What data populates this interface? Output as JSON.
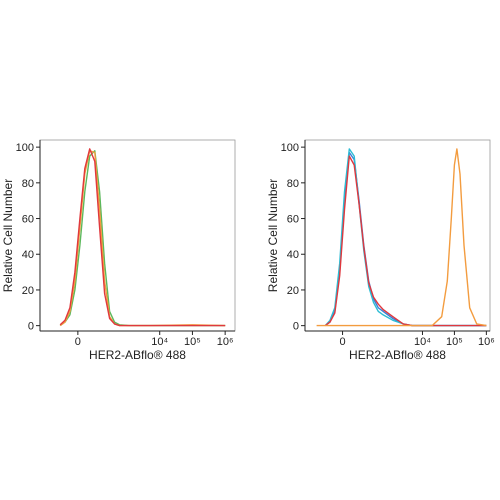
{
  "chart_data": [
    {
      "type": "line",
      "xlabel": "HER2-ABflo® 488",
      "ylabel": "Relative Cell Number",
      "xscale": "biexponential",
      "xlim": [
        -450,
        2000000
      ],
      "ylim": [
        -3,
        104
      ],
      "xticks": [
        0,
        {
          "value": 10000,
          "label": "10⁴"
        },
        {
          "value": 100000,
          "label": "10⁵"
        },
        {
          "value": 1000000,
          "label": "10⁶"
        }
      ],
      "yticks": [
        0,
        20,
        40,
        60,
        80,
        100
      ],
      "series": [
        {
          "color": "#5cb85c",
          "x": [
            -100,
            -65,
            -37,
            -13,
            9,
            32,
            59,
            94,
            139,
            202,
            290,
            413,
            588,
            1185,
            4770,
            100000,
            1000000
          ],
          "values": [
            0,
            2,
            6,
            20,
            45,
            75,
            95,
            98,
            75,
            35,
            8,
            2,
            0.5,
            0,
            0,
            0,
            0
          ]
        },
        {
          "color": "#f39c3f",
          "x": [
            -100,
            -65,
            -37,
            -13,
            9,
            32,
            59,
            94,
            139,
            202,
            290,
            413,
            588,
            1185,
            4770,
            100000,
            1000000
          ],
          "values": [
            0,
            2,
            8,
            25,
            55,
            85,
            98,
            97,
            65,
            25,
            5,
            1,
            0,
            0,
            0,
            0.5,
            0
          ]
        },
        {
          "color": "#e0383e",
          "x": [
            -100,
            -65,
            -37,
            -13,
            9,
            32,
            59,
            94,
            139,
            202,
            290,
            413,
            588,
            1185,
            4770,
            100000,
            1000000
          ],
          "values": [
            0.5,
            3,
            10,
            30,
            60,
            88,
            99,
            92,
            55,
            18,
            4,
            1,
            0,
            0,
            0,
            0,
            0
          ]
        }
      ]
    },
    {
      "type": "line",
      "xlabel": "HER2-ABflo® 488",
      "ylabel": "Relative Cell Number",
      "xscale": "biexponential",
      "xlim": [
        -470,
        1300000
      ],
      "ylim": [
        -3,
        104
      ],
      "xticks": [
        0,
        {
          "value": 10000,
          "label": "10⁴"
        },
        {
          "value": 100000,
          "label": "10⁵"
        },
        {
          "value": 1000000,
          "label": "10⁶"
        }
      ],
      "yticks": [
        0,
        20,
        40,
        60,
        80,
        100
      ],
      "series": [
        {
          "color": "#3c7fd6",
          "x": [
            -100,
            -65,
            -37,
            -13,
            9,
            32,
            59,
            94,
            139,
            202,
            290,
            413,
            588,
            1185,
            2500,
            4770,
            20000,
            1000000
          ],
          "values": [
            0,
            2,
            8,
            30,
            70,
            97,
            93,
            70,
            45,
            25,
            15,
            10,
            8,
            4,
            1,
            0,
            0,
            0
          ]
        },
        {
          "color": "#2bbcd4",
          "x": [
            -100,
            -65,
            -37,
            -13,
            9,
            32,
            59,
            94,
            139,
            202,
            290,
            413,
            588,
            1185,
            2500,
            4770,
            20000,
            1000000
          ],
          "values": [
            0,
            3,
            10,
            35,
            75,
            99,
            95,
            68,
            42,
            22,
            13,
            8,
            6,
            3,
            1,
            0,
            0,
            0
          ]
        },
        {
          "color": "#e0383e",
          "x": [
            -100,
            -65,
            -37,
            -13,
            9,
            32,
            59,
            94,
            139,
            202,
            290,
            413,
            588,
            1185,
            2500,
            4770,
            20000,
            1000000
          ],
          "values": [
            0,
            2,
            7,
            28,
            65,
            95,
            90,
            68,
            44,
            24,
            16,
            12,
            9,
            5,
            1,
            0,
            0,
            0
          ]
        },
        {
          "color": "#f39c3f",
          "x": [
            -200,
            10000,
            20000,
            40000,
            60000,
            80000,
            100000,
            120000,
            150000,
            200000,
            300000,
            500000,
            1000000
          ],
          "values": [
            0,
            0,
            0,
            5,
            25,
            60,
            90,
            99,
            85,
            45,
            10,
            1,
            0
          ]
        }
      ]
    }
  ]
}
